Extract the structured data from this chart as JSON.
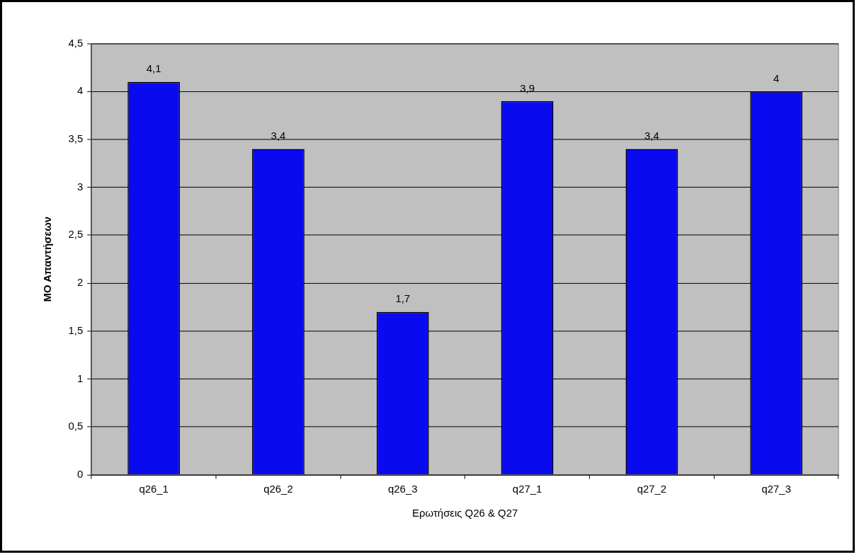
{
  "chart_data": {
    "type": "bar",
    "xlabel": "Ερωτήσεις Q26 & Q27",
    "ylabel": "ΜΟ Απαντήσεων",
    "categories": [
      "q26_1",
      "q26_2",
      "q26_3",
      "q27_1",
      "q27_2",
      "q27_3"
    ],
    "values": [
      4.1,
      3.4,
      1.7,
      3.9,
      3.4,
      4
    ],
    "value_labels": [
      "4,1",
      "3,4",
      "1,7",
      "3,9",
      "3,4",
      "4"
    ],
    "color": "#0a0af0",
    "ylim": [
      0,
      4.5
    ],
    "yticks": [
      0,
      {
        "value": 0.5,
        "label": "0,5"
      },
      1,
      {
        "value": 1.5,
        "label": "1,5"
      },
      2,
      {
        "value": 2.5,
        "label": "2,5"
      },
      3,
      {
        "value": 3.5,
        "label": "3,5"
      },
      4,
      {
        "value": 4.5,
        "label": "4,5"
      }
    ],
    "grid": "y",
    "legend": false
  }
}
